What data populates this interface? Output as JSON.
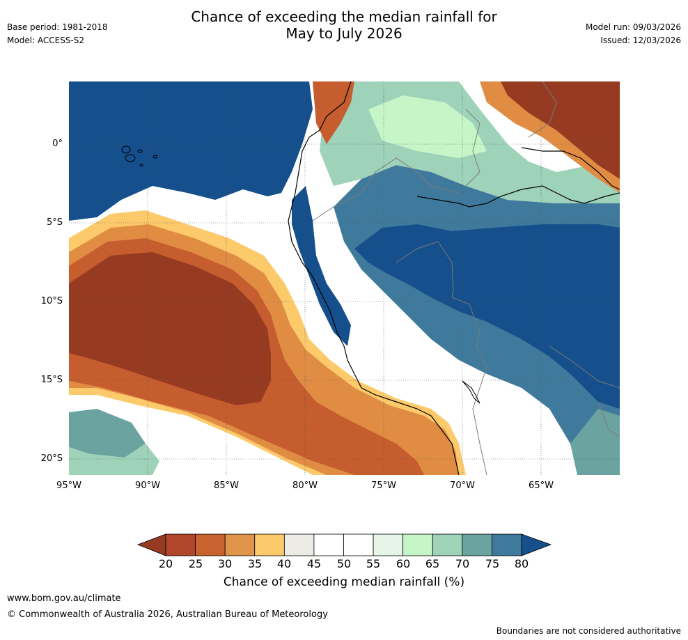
{
  "header": {
    "title_line1": "Chance of exceeding the median rainfall for",
    "title_line2": "May to July 2026",
    "base_period": "Base period: 1981-2018",
    "model": "Model: ACCESS-S2",
    "model_run": "Model run: 09/03/2026",
    "issued": "Issued: 12/03/2026"
  },
  "map": {
    "lat_labels": [
      "0°",
      "5°S",
      "10°S",
      "15°S",
      "20°S"
    ],
    "lon_labels": [
      "95°W",
      "90°W",
      "85°W",
      "80°W",
      "75°W",
      "70°W",
      "65°W"
    ],
    "colors": {
      "ocean_dark": "#154f8c",
      "deep_brown": "#963a22",
      "orange_dark": "#c65d2f",
      "orange": "#e18c43",
      "yellow": "#fcca6a",
      "light_grey": "#ecebe6",
      "blue_mid": "#3f7a9c",
      "teal": "#6aa39f",
      "green": "#9ed2b9",
      "pale_green": "#c6f6c8"
    }
  },
  "colorbar": {
    "label": "Chance of exceeding median rainfall (%)",
    "ticks": [
      "20",
      "25",
      "30",
      "35",
      "40",
      "45",
      "50",
      "55",
      "60",
      "65",
      "70",
      "75",
      "80"
    ],
    "colors": [
      "#963a22",
      "#b2462a",
      "#c8622f",
      "#e0944a",
      "#fcca6a",
      "#ecebe6",
      "#ffffff",
      "#ffffff",
      "#e6f5e8",
      "#c6f6c8",
      "#9ed2b9",
      "#6aa39f",
      "#3f7a9c",
      "#154f8c"
    ]
  },
  "footer": {
    "website": "www.bom.gov.au/climate",
    "copyright": "© Commonwealth of Australia 2026, Australian Bureau of Meteorology",
    "disclaimer": "Boundaries are not considered authoritative"
  }
}
